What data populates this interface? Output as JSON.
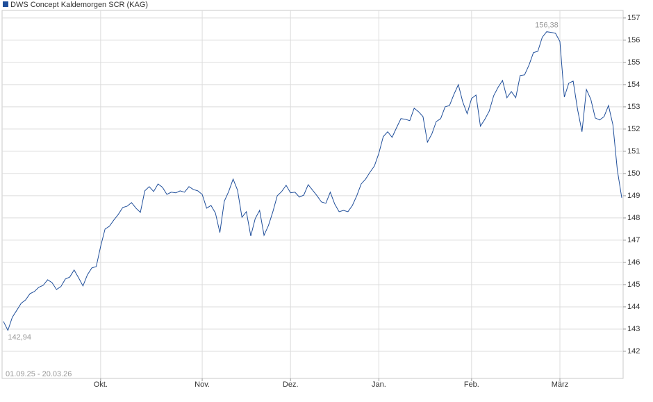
{
  "chart_data": {
    "type": "line",
    "date_range": "01.09.25 - 20.03.26",
    "series": [
      {
        "name": "DWS Concept Kaldemorgen SCR (KAG)",
        "color": "#1f4e9a",
        "x": [
          0,
          1,
          2,
          3,
          4,
          5,
          6,
          7,
          8,
          9,
          10,
          11,
          12,
          13,
          14,
          15,
          16,
          17,
          18,
          19,
          20,
          21,
          22,
          23,
          24,
          25,
          26,
          27,
          28,
          29,
          30,
          31,
          32,
          33,
          34,
          35,
          36,
          37,
          38,
          39,
          40,
          41,
          42,
          43,
          44,
          45,
          46,
          47,
          48,
          49,
          50,
          51,
          52,
          53,
          54,
          55,
          56,
          57,
          58,
          59,
          60,
          61,
          62,
          63,
          64,
          65,
          66,
          67,
          68,
          69,
          70,
          71,
          72,
          73,
          74,
          75,
          76,
          77,
          78,
          79,
          80,
          81,
          82,
          83,
          84,
          85,
          86,
          87,
          88,
          89,
          90,
          91,
          92,
          93,
          94,
          95,
          96,
          97,
          98,
          99,
          100,
          101,
          102,
          103,
          104,
          105,
          106,
          107,
          108,
          109,
          110,
          111,
          112,
          113,
          114,
          115,
          116,
          117,
          118,
          119,
          120,
          121,
          122,
          123,
          124,
          125,
          126,
          127,
          128,
          129,
          130,
          131,
          132,
          133,
          134,
          135,
          136,
          137,
          138,
          139,
          140
        ],
        "values": [
          143.34,
          142.94,
          143.53,
          143.84,
          144.16,
          144.31,
          144.59,
          144.69,
          144.88,
          144.97,
          145.22,
          145.09,
          144.78,
          144.91,
          145.25,
          145.34,
          145.66,
          145.31,
          144.94,
          145.44,
          145.75,
          145.81,
          146.72,
          147.5,
          147.63,
          147.91,
          148.16,
          148.47,
          148.53,
          148.69,
          148.44,
          148.25,
          149.22,
          149.41,
          149.19,
          149.53,
          149.38,
          149.06,
          149.16,
          149.13,
          149.22,
          149.16,
          149.41,
          149.28,
          149.22,
          149.06,
          148.44,
          148.56,
          148.22,
          147.34,
          148.75,
          149.19,
          149.75,
          149.25,
          148.03,
          148.28,
          147.19,
          147.97,
          148.34,
          147.22,
          147.66,
          148.28,
          149.0,
          149.19,
          149.47,
          149.13,
          149.16,
          148.94,
          149.03,
          149.5,
          149.25,
          149.0,
          148.72,
          148.66,
          149.16,
          148.63,
          148.28,
          148.34,
          148.28,
          148.56,
          149.0,
          149.53,
          149.75,
          150.06,
          150.34,
          150.91,
          151.66,
          151.88,
          151.63,
          152.06,
          152.47,
          152.44,
          152.38,
          152.94,
          152.78,
          152.56,
          151.41,
          151.78,
          152.34,
          152.47,
          153.0,
          153.06,
          153.56,
          154.0,
          153.22,
          152.69,
          153.38,
          153.53,
          152.13,
          152.44,
          152.81,
          153.5,
          153.88,
          154.19,
          153.41,
          153.69,
          153.41,
          154.41,
          154.44,
          154.88,
          155.44,
          155.5,
          156.13,
          156.38,
          156.35,
          156.31,
          155.94,
          153.44,
          154.06,
          154.16,
          152.88,
          151.88,
          153.78,
          153.34,
          152.5,
          152.41,
          152.56,
          153.06,
          152.19,
          150.16,
          148.91
        ]
      }
    ],
    "annotations": [
      {
        "text": "156,38",
        "x": 123,
        "y": 156.38
      },
      {
        "text": "142,94",
        "x": 1,
        "y": 142.94
      }
    ],
    "xlim": [
      0,
      140
    ],
    "xticks": [
      {
        "value": 22,
        "label": "Okt."
      },
      {
        "value": 45,
        "label": "Nov."
      },
      {
        "value": 65,
        "label": "Dez."
      },
      {
        "value": 85,
        "label": "Jan."
      },
      {
        "value": 106,
        "label": "Feb."
      },
      {
        "value": 126,
        "label": "März"
      }
    ],
    "ylim": [
      140.78,
      157.34
    ],
    "yticks": [
      142,
      143,
      144,
      145,
      146,
      147,
      148,
      149,
      150,
      151,
      152,
      153,
      154,
      155,
      156,
      157
    ],
    "grid": true,
    "legend": "top-left"
  }
}
